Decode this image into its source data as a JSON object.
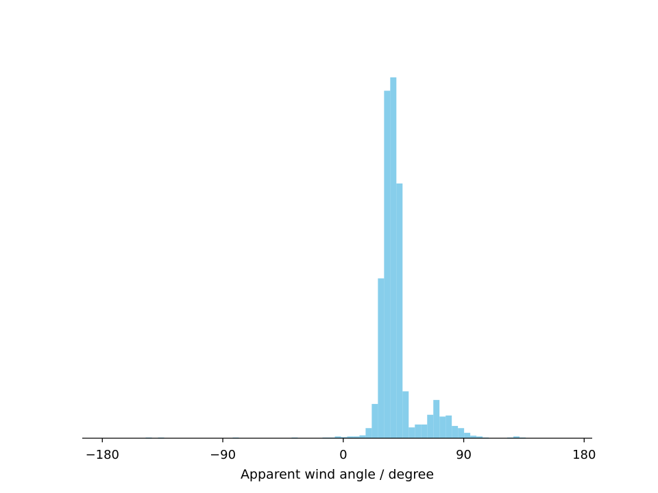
{
  "chart_data": {
    "type": "bar",
    "title": "",
    "xlabel": "Apparent wind angle / degree",
    "ylabel": "",
    "xlim": [
      -195,
      186
    ],
    "ylim": [
      0,
      1000
    ],
    "xticks": [
      -180,
      -90,
      0,
      90,
      180
    ],
    "xtick_labels": [
      "−180",
      "−90",
      "0",
      "90",
      "180"
    ],
    "grid": false,
    "bar_color": "#87ceeb",
    "bin_width": 4.6,
    "bins": [
      {
        "x0": -147.6,
        "value": 2
      },
      {
        "x0": -138.4,
        "value": 2
      },
      {
        "x0": -82.6,
        "value": 2
      },
      {
        "x0": -38.6,
        "value": 2
      },
      {
        "x0": -15.5,
        "value": 2
      },
      {
        "x0": -10.9,
        "value": 2
      },
      {
        "x0": -6.3,
        "value": 5
      },
      {
        "x0": -1.7,
        "value": 3
      },
      {
        "x0": 2.9,
        "value": 5
      },
      {
        "x0": 7.5,
        "value": 5
      },
      {
        "x0": 12.1,
        "value": 8
      },
      {
        "x0": 16.7,
        "value": 28
      },
      {
        "x0": 21.3,
        "value": 95
      },
      {
        "x0": 25.9,
        "value": 443
      },
      {
        "x0": 30.5,
        "value": 963
      },
      {
        "x0": 35.1,
        "value": 1000
      },
      {
        "x0": 39.7,
        "value": 706
      },
      {
        "x0": 44.3,
        "value": 130
      },
      {
        "x0": 48.9,
        "value": 30
      },
      {
        "x0": 53.5,
        "value": 38
      },
      {
        "x0": 58.1,
        "value": 38
      },
      {
        "x0": 62.7,
        "value": 65
      },
      {
        "x0": 67.3,
        "value": 106
      },
      {
        "x0": 71.9,
        "value": 60
      },
      {
        "x0": 76.5,
        "value": 63
      },
      {
        "x0": 81.1,
        "value": 34
      },
      {
        "x0": 85.7,
        "value": 28
      },
      {
        "x0": 90.3,
        "value": 15
      },
      {
        "x0": 94.9,
        "value": 7
      },
      {
        "x0": 99.5,
        "value": 5
      },
      {
        "x0": 104.1,
        "value": 2
      },
      {
        "x0": 122.5,
        "value": 2
      },
      {
        "x0": 127.1,
        "value": 5
      },
      {
        "x0": 131.7,
        "value": 2
      }
    ]
  }
}
